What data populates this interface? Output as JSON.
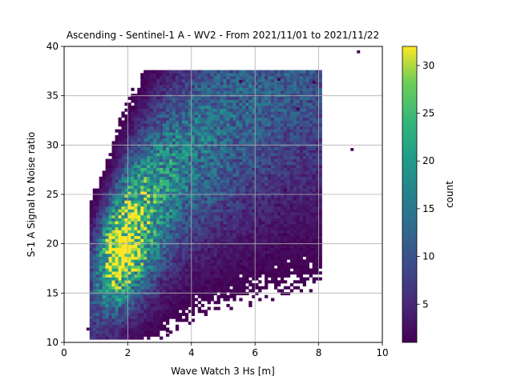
{
  "chart_data": {
    "type": "heatmap",
    "title": "Ascending - Sentinel-1 A - WV2 - From 2021/11/01 to 2021/11/22",
    "xlabel": "Wave Watch 3 Hs [m]",
    "ylabel": "S-1 A Signal to Noise ratio",
    "xlim": [
      0,
      10
    ],
    "ylim": [
      10,
      40
    ],
    "xticks": [
      "0",
      "2",
      "4",
      "6",
      "8",
      "10"
    ],
    "yticks": [
      "10",
      "15",
      "20",
      "25",
      "30",
      "35",
      "40"
    ],
    "grid": true,
    "bins": {
      "x_width": 0.1,
      "y_width": 0.3
    },
    "colorbar": {
      "label": "count",
      "range": [
        1,
        32
      ],
      "ticks": [
        "5",
        "10",
        "15",
        "20",
        "25",
        "30"
      ],
      "colormap": "viridis"
    },
    "density_peak": {
      "x": 1.85,
      "y": 19.2,
      "count": 32
    },
    "outliers": [
      {
        "x": 9.2,
        "y": 39.3
      },
      {
        "x": 9.0,
        "y": 29.4
      },
      {
        "x": 7.8,
        "y": 36.2
      },
      {
        "x": 2.9,
        "y": 36.9
      },
      {
        "x": 6.7,
        "y": 36.5
      },
      {
        "x": 5.5,
        "y": 36.3
      },
      {
        "x": 6.9,
        "y": 25.3
      },
      {
        "x": 7.3,
        "y": 33.5
      },
      {
        "x": 0.7,
        "y": 11.2
      },
      {
        "x": 3.2,
        "y": 11.0
      }
    ]
  }
}
